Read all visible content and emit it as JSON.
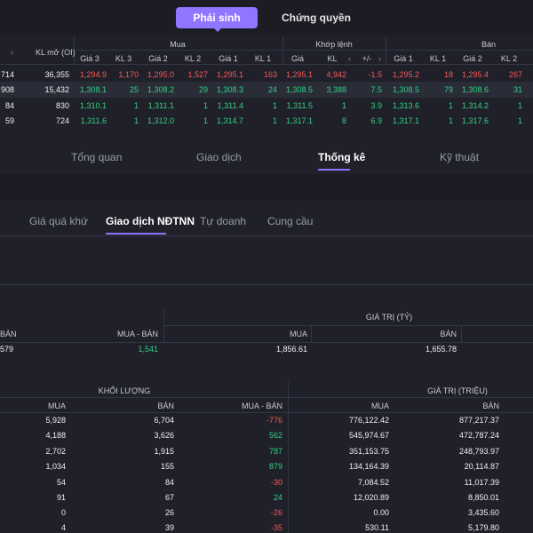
{
  "top_tabs": [
    {
      "label": "Phái sinh",
      "active": true
    },
    {
      "label": "Chứng quyền",
      "active": false
    }
  ],
  "board": {
    "group_headers": {
      "buy": "Mua",
      "match": "Khớp lệnh",
      "sell": "Bán"
    },
    "oi_header": "KL mở (OI)",
    "columns": [
      "Giá 3",
      "KL 3",
      "Giá 2",
      "KL 2",
      "Giá 1",
      "KL 1",
      "Giá",
      "KL",
      "+/-",
      "Giá 1",
      "KL 1",
      "Giá 2",
      "KL 2"
    ],
    "rows": [
      {
        "vol": "714",
        "oi": "36,355",
        "b3": "1,294.9",
        "bk3": "1,170",
        "b2": "1,295.0",
        "bk2": "1,527",
        "b1": "1,295.1",
        "bk1": "163",
        "p": "1,295.1",
        "k": "4,942",
        "chg": "-1.5",
        "s1": "1,295.2",
        "sk1": "18",
        "s2": "1,295.4",
        "sk2": "267",
        "tone": "red"
      },
      {
        "vol": "908",
        "oi": "15,432",
        "b3": "1,308.1",
        "bk3": "25",
        "b2": "1,308.2",
        "bk2": "29",
        "b1": "1,308.3",
        "bk1": "24",
        "p": "1,308.5",
        "k": "3,388",
        "chg": "7.5",
        "s1": "1,308.5",
        "sk1": "79",
        "s2": "1,308.6",
        "sk2": "31",
        "tone": "green"
      },
      {
        "vol": "84",
        "oi": "830",
        "b3": "1,310.1",
        "bk3": "1",
        "b2": "1,311.1",
        "bk2": "1",
        "b1": "1,311.4",
        "bk1": "1",
        "p": "1,311.5",
        "k": "1",
        "chg": "3.9",
        "s1": "1,313.6",
        "sk1": "1",
        "s2": "1,314.2",
        "sk2": "1",
        "tone": "green"
      },
      {
        "vol": "59",
        "oi": "724",
        "b3": "1,311.6",
        "bk3": "1",
        "b2": "1,312.0",
        "bk2": "1",
        "b1": "1,314.7",
        "bk1": "1",
        "p": "1,317.1",
        "k": "8",
        "chg": "6.9",
        "s1": "1,317.1",
        "sk1": "1",
        "s2": "1,317.6",
        "sk2": "1",
        "tone": "green"
      }
    ]
  },
  "main_tabs": [
    "Tổng quan",
    "Giao dịch",
    "Thống kê",
    "Kỹ thuật"
  ],
  "sub_tabs": [
    "Giá quá khứ",
    "Giao dịch NĐTNN",
    "Tự doanh",
    "Cung cầu"
  ],
  "summary": {
    "group_header": "GIÁ TRỊ (TỶ)",
    "col_ban_left": "BÁN",
    "col_mua_ban": "MUA - BÁN",
    "col_mua": "MUA",
    "col_ban": "BÁN",
    "row": {
      "left": "579",
      "mua_ban": "1,541",
      "mua": "1,856.61",
      "ban": "1,655.78"
    }
  },
  "detail": {
    "group_volume": "KHỐI LƯỢNG",
    "group_value": "GIÁ TRỊ (TRIỆU)",
    "cols": {
      "mua": "MUA",
      "ban": "BÁN",
      "mua_ban": "MUA - BÁN",
      "vmua": "MUA",
      "vban": "BÁN"
    },
    "rows": [
      {
        "mua": "5,928",
        "ban": "6,704",
        "diff": "-776",
        "vmua": "776,122.42",
        "vban": "877,217.37",
        "tone": "red"
      },
      {
        "mua": "4,188",
        "ban": "3,626",
        "diff": "562",
        "vmua": "545,974.67",
        "vban": "472,787.24",
        "tone": "green"
      },
      {
        "mua": "2,702",
        "ban": "1,915",
        "diff": "787",
        "vmua": "351,153.75",
        "vban": "248,793.97",
        "tone": "green"
      },
      {
        "mua": "1,034",
        "ban": "155",
        "diff": "879",
        "vmua": "134,164.39",
        "vban": "20,114.87",
        "tone": "green"
      },
      {
        "mua": "54",
        "ban": "84",
        "diff": "-30",
        "vmua": "7,084.52",
        "vban": "11,017.39",
        "tone": "red"
      },
      {
        "mua": "91",
        "ban": "67",
        "diff": "24",
        "vmua": "12,020.89",
        "vban": "8,850.01",
        "tone": "green"
      },
      {
        "mua": "0",
        "ban": "26",
        "diff": "-26",
        "vmua": "0.00",
        "vban": "3,435.60",
        "tone": "red"
      },
      {
        "mua": "4",
        "ban": "39",
        "diff": "-35",
        "vmua": "530.11",
        "vban": "5,179.80",
        "tone": "red"
      }
    ]
  },
  "colors": {
    "accent": "#8f75ff",
    "up": "#34d184",
    "down": "#f25a5a",
    "bg": "#1f2029"
  }
}
